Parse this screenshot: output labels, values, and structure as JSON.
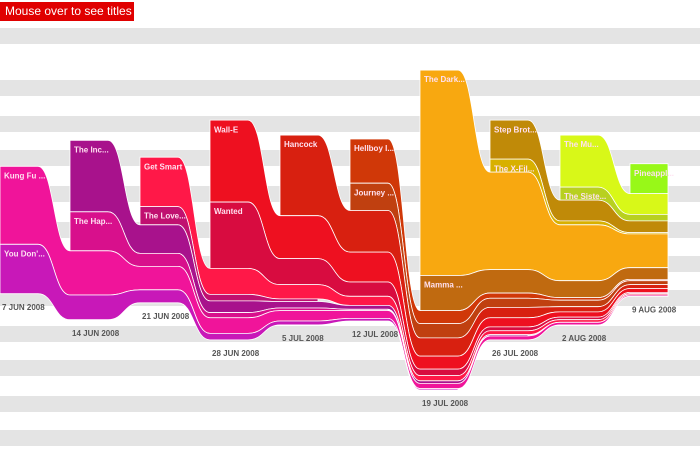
{
  "button": "Mouse over to see titles",
  "chart_data": {
    "type": "stream",
    "categories": [
      "7 JUN 2008",
      "14 JUN 2008",
      "21 JUN 2008",
      "28 JUN 2008",
      "5 JUL 2008",
      "12 JUL 2008",
      "19 JUL 2008",
      "26 JUL 2008",
      "2 AUG 2008",
      "9 AUG 2008"
    ],
    "series": [
      {
        "name": "Pineappl...",
        "color": "#98f818",
        "values": [
          null,
          null,
          null,
          null,
          null,
          null,
          null,
          null,
          null,
          23
        ]
      },
      {
        "name": "The Mu...",
        "color": "#d8f818",
        "values": [
          null,
          null,
          null,
          null,
          null,
          null,
          null,
          null,
          40,
          16
        ]
      },
      {
        "name": "The Siste...",
        "color": "#b8d020",
        "values": [
          null,
          null,
          null,
          null,
          null,
          null,
          null,
          null,
          10,
          5
        ]
      },
      {
        "name": "Step Brot...",
        "color": "#c08a08",
        "values": [
          null,
          null,
          null,
          null,
          null,
          null,
          null,
          30,
          16,
          9
        ]
      },
      {
        "name": "The X-Fil...",
        "color": "#d8b000",
        "values": [
          null,
          null,
          null,
          null,
          null,
          null,
          null,
          10,
          3,
          1
        ]
      },
      {
        "name": "The Dark...",
        "color": "#f8a810",
        "values": [
          null,
          null,
          null,
          null,
          null,
          null,
          158,
          75,
          43,
          26
        ]
      },
      {
        "name": "Mamma ...",
        "color": "#c06a10",
        "values": [
          null,
          null,
          null,
          null,
          null,
          null,
          27,
          18,
          13,
          9
        ]
      },
      {
        "name": "Hellboy I...",
        "color": "#d03808",
        "values": [
          null,
          null,
          null,
          null,
          null,
          34,
          10,
          4,
          2,
          1
        ]
      },
      {
        "name": "Journey ...",
        "color": "#c04010",
        "values": [
          null,
          null,
          null,
          null,
          null,
          21,
          11,
          7,
          5,
          3
        ]
      },
      {
        "name": "Hancock",
        "color": "#d82010",
        "values": [
          null,
          null,
          null,
          null,
          62,
          32,
          14,
          8,
          4,
          3
        ]
      },
      {
        "name": "Wall-E",
        "color": "#ee1020",
        "values": [
          null,
          null,
          null,
          63,
          33,
          23,
          10,
          7,
          4,
          3
        ]
      },
      {
        "name": "Wanted",
        "color": "#d80c40",
        "values": [
          null,
          null,
          null,
          51,
          20,
          11,
          5,
          3,
          2,
          1
        ]
      },
      {
        "name": "Get Smart",
        "color": "#ff1848",
        "values": [
          null,
          null,
          38,
          20,
          11,
          7,
          4,
          3,
          2,
          1
        ]
      },
      {
        "name": "The Love...",
        "color": "#c01070",
        "values": [
          null,
          null,
          14,
          5,
          2,
          null,
          null,
          null,
          null,
          null
        ]
      },
      {
        "name": "The Inc...",
        "color": "#a8128c",
        "values": [
          null,
          55,
          22,
          9,
          5,
          3,
          2,
          1,
          null,
          null
        ]
      },
      {
        "name": "The Hap...",
        "color": "#d8108c",
        "values": [
          null,
          30,
          10,
          4,
          2,
          1,
          null,
          null,
          null,
          null
        ]
      },
      {
        "name": "Kung Fu ...",
        "color": "#f0149a",
        "values": [
          60,
          34,
          18,
          12,
          8,
          6,
          4,
          3,
          2,
          1
        ]
      },
      {
        "name": "You Don'...",
        "color": "#c818b8",
        "values": [
          38,
          19,
          10,
          5,
          3,
          2,
          1,
          null,
          null,
          null
        ]
      }
    ]
  }
}
